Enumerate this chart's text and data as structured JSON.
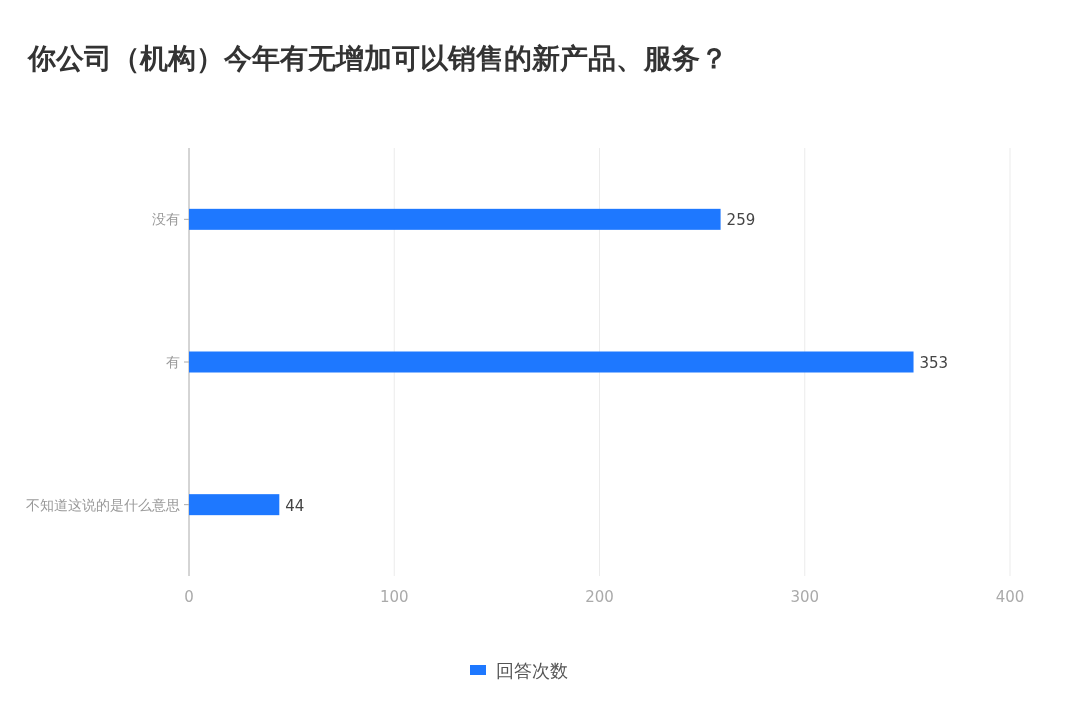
{
  "chart_data": {
    "type": "bar",
    "orientation": "horizontal",
    "title": "你公司（机构）今年有无增加可以销售的新产品、服务？",
    "categories": [
      "没有",
      "有",
      "不知道这说的是什么意思"
    ],
    "series": [
      {
        "name": "回答次数",
        "color": "#1e78ff",
        "values": [
          259,
          353,
          44
        ]
      }
    ],
    "xlim": [
      0,
      400
    ],
    "xticks": [
      0,
      100,
      200,
      300,
      400
    ],
    "grid": "x",
    "legend": "bottom",
    "data_labels": true
  }
}
